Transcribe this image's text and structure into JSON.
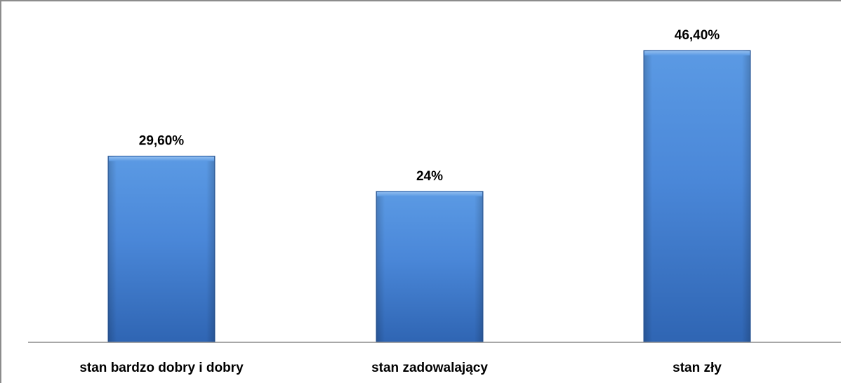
{
  "chart_data": {
    "type": "bar",
    "categories": [
      "stan bardzo dobry i dobry",
      "stan zadowalający",
      "stan zły"
    ],
    "values": [
      29.6,
      24,
      46.4
    ],
    "value_labels": [
      "29,60%",
      "24%",
      "46,40%"
    ],
    "title": "",
    "xlabel": "",
    "ylabel": "",
    "ylim": [
      0,
      50
    ],
    "grid": false,
    "legend": "none",
    "colors": {
      "bar_top": "#5b9ae4",
      "bar_mid": "#4a87d8",
      "bar_bottom": "#2f65b3",
      "bar_edge": "#2a5a9e",
      "axis": "#8c8c8c",
      "frame": "#8c8c8c"
    }
  }
}
